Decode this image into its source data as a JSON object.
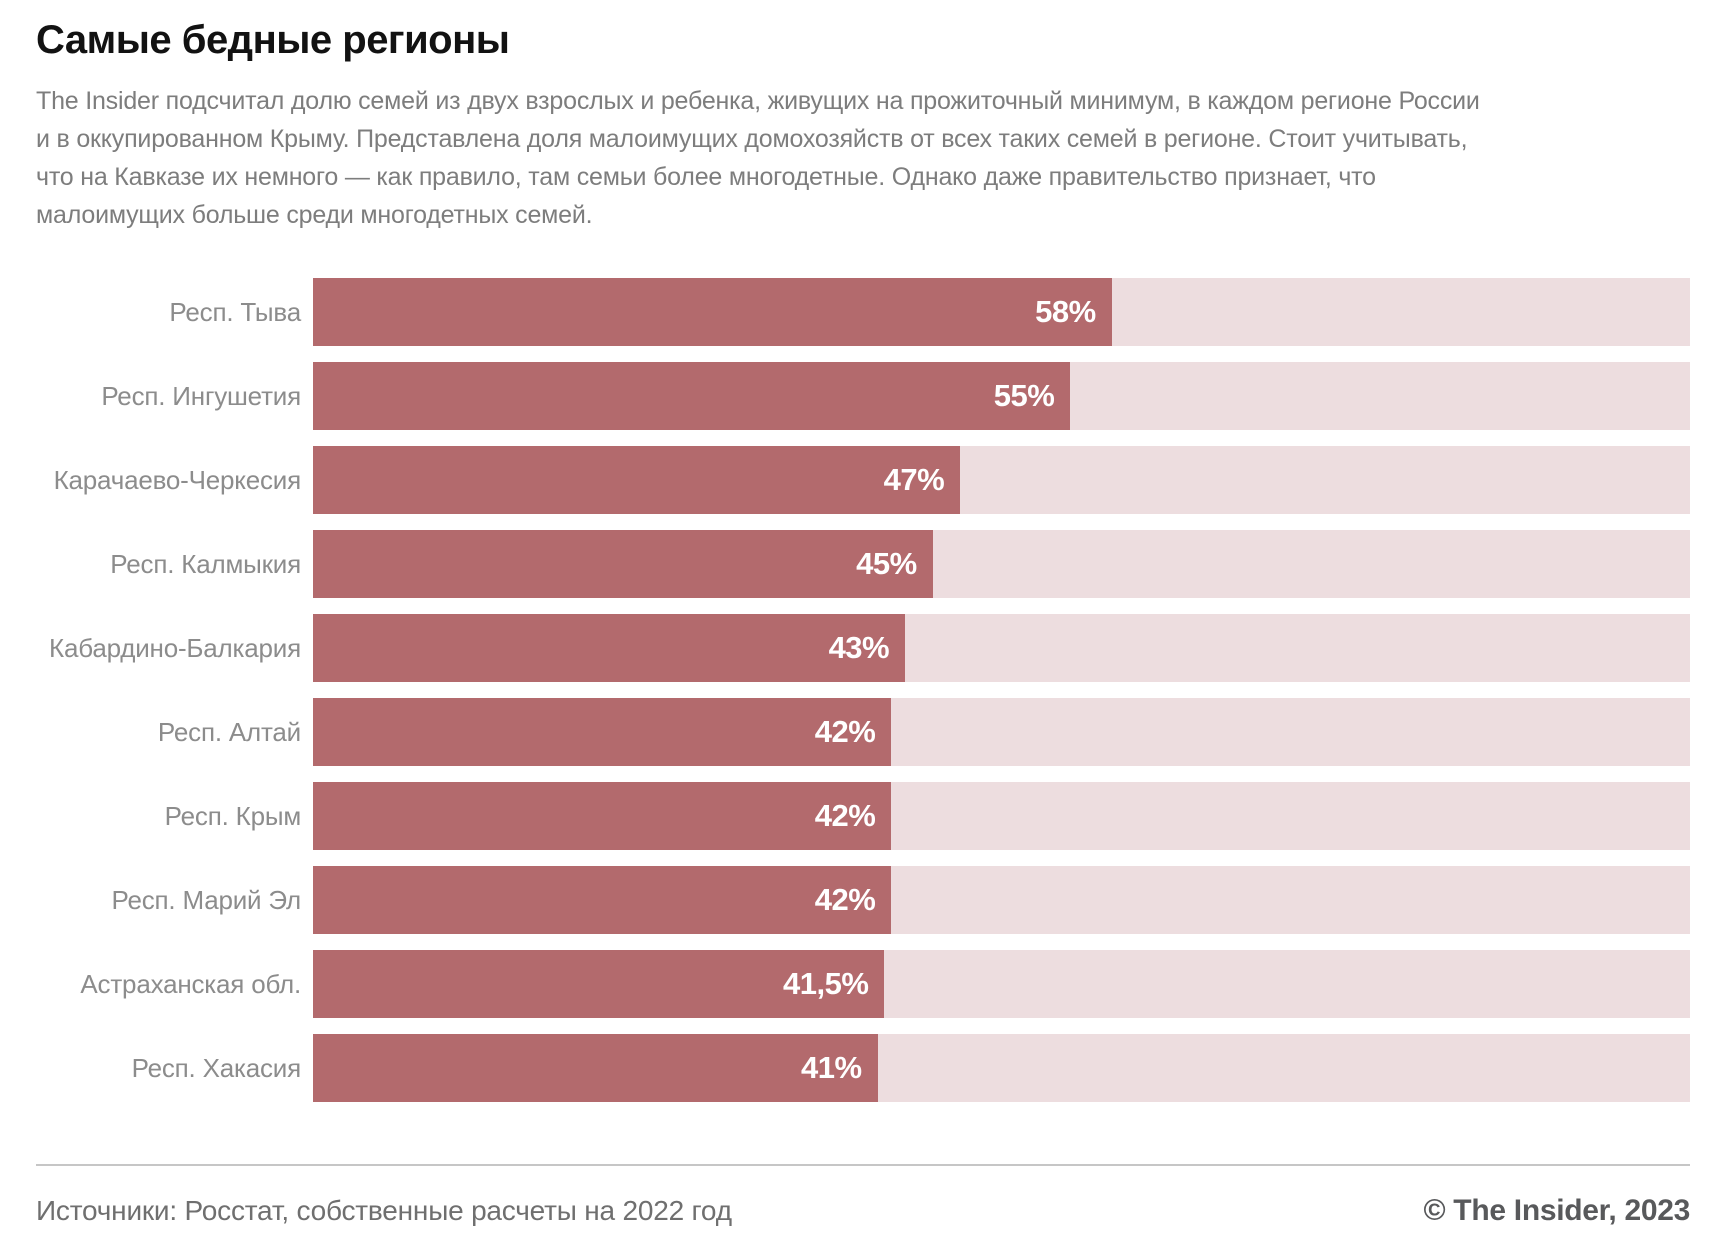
{
  "header": {
    "title": "Самые бедные регионы",
    "subtitle_lines": [
      "The Insider подсчитал долю семей из двух взрослых и ребенка, живущих на прожиточный минимум, в каждом регионе России",
      "и в оккупированном Крыму. Представлена доля малоимущих домохозяйств от всех таких семей в регионе. Стоит учитывать,",
      "что на Кавказе их немного — как правило, там семьи более многодетные. Однако даже правительство признает, что",
      "малоимущих больше среди многодетных семей."
    ]
  },
  "chart_data": {
    "type": "bar",
    "orientation": "horizontal",
    "title": "Самые бедные регионы",
    "categories": [
      "Респ. Тыва",
      "Респ. Ингушетия",
      "Карачаево-Черкесия",
      "Респ. Калмыкия",
      "Кабардино-Балкария",
      "Респ. Алтай",
      "Респ. Крым",
      "Респ. Марий Эл",
      "Астраханская обл.",
      "Респ. Хакасия"
    ],
    "values": [
      58,
      55,
      47,
      45,
      43,
      42,
      42,
      42,
      41.5,
      41
    ],
    "value_labels": [
      "58%",
      "55%",
      "47%",
      "45%",
      "43%",
      "42%",
      "42%",
      "42%",
      "41,5%",
      "41%"
    ],
    "unit": "%",
    "xlim": [
      0,
      100
    ],
    "grid": false,
    "legend": false,
    "colors": {
      "bar": "#b36a6d",
      "track": "#eddddf",
      "value_text": "#ffffff",
      "category_text": "#8c8c8c"
    }
  },
  "footer": {
    "source": "Источники: Росстат, собственные расчеты на 2022 год",
    "copyright": "© The Insider, 2023"
  }
}
